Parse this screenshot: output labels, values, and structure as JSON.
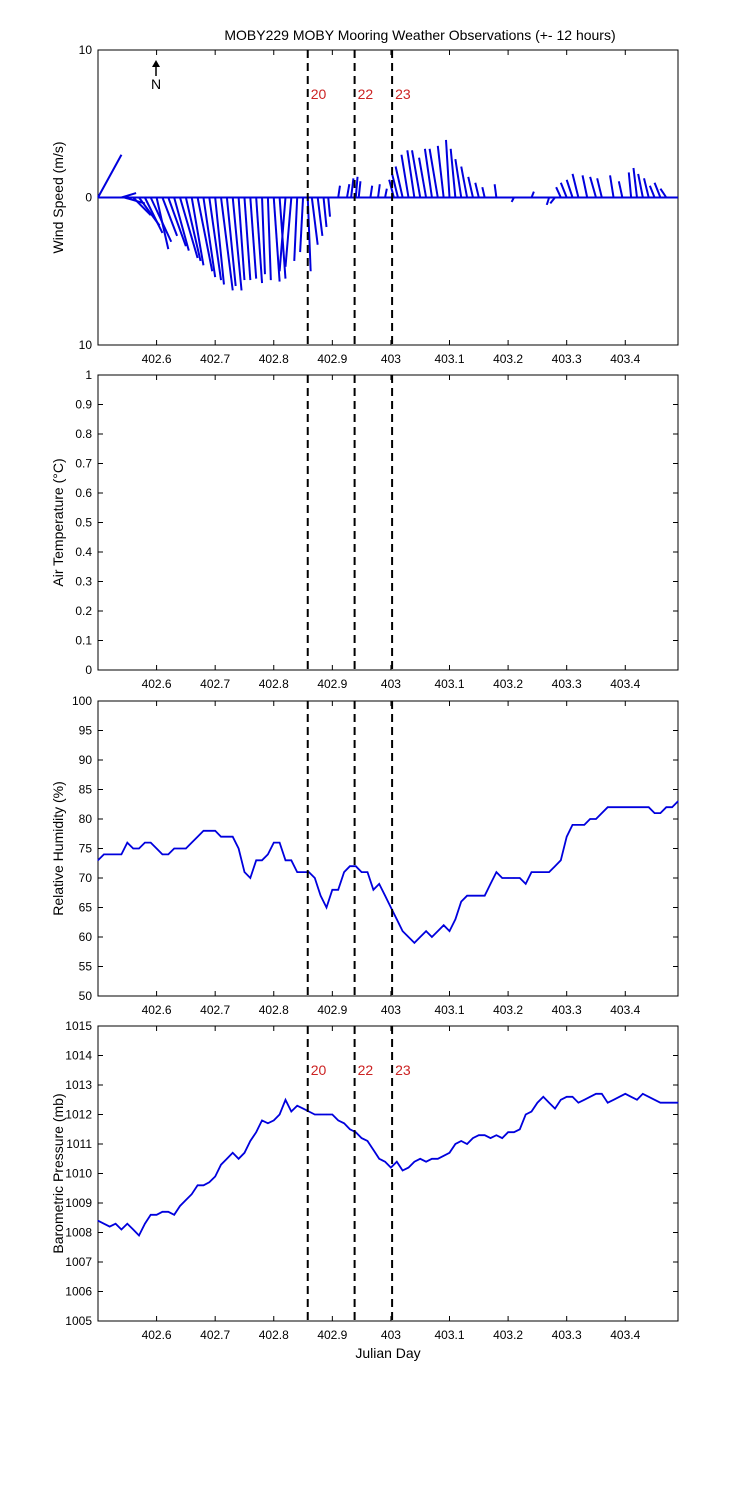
{
  "title": "MOBY229 MOBY Mooring Weather Observations (+- 12 hours)",
  "colors": {
    "line": "#0000dd",
    "event": "#000000",
    "event_label": "#cc2222"
  },
  "north_label": "N",
  "chart_data": [
    {
      "type": "wind-vector",
      "ylabel": "Wind Speed (m/s)",
      "xlim": [
        402.5,
        403.49
      ],
      "ylim": [
        -10,
        10
      ],
      "yticks": [
        10,
        0,
        10
      ],
      "xticks": [
        402.6,
        402.7,
        402.8,
        402.9,
        403,
        403.1,
        403.2,
        403.3,
        403.4
      ],
      "xlabel": "",
      "events": [
        {
          "x": 402.858,
          "label": "20"
        },
        {
          "x": 402.938,
          "label": "22"
        },
        {
          "x": 403.002,
          "label": "23"
        }
      ],
      "vectors": [
        {
          "x": 402.5,
          "u": 0.04,
          "v": 2.9
        },
        {
          "x": 402.54,
          "u": 0.025,
          "v": 0.3
        },
        {
          "x": 402.545,
          "u": 0.035,
          "v": -0.4
        },
        {
          "x": 402.56,
          "u": 0.03,
          "v": -1.2
        },
        {
          "x": 402.57,
          "u": 0.035,
          "v": -1.9
        },
        {
          "x": 402.58,
          "u": 0.03,
          "v": -2.4
        },
        {
          "x": 402.59,
          "u": 0.035,
          "v": -3.0
        },
        {
          "x": 402.6,
          "u": 0.02,
          "v": -3.5
        },
        {
          "x": 402.61,
          "u": 0.025,
          "v": -2.6
        },
        {
          "x": 402.62,
          "u": 0.03,
          "v": -3.3
        },
        {
          "x": 402.63,
          "u": 0.025,
          "v": -3.6
        },
        {
          "x": 402.64,
          "u": 0.03,
          "v": -4.1
        },
        {
          "x": 402.65,
          "u": 0.025,
          "v": -4.3
        },
        {
          "x": 402.66,
          "u": 0.02,
          "v": -4.6
        },
        {
          "x": 402.67,
          "u": 0.025,
          "v": -5.0
        },
        {
          "x": 402.68,
          "u": 0.02,
          "v": -5.4
        },
        {
          "x": 402.69,
          "u": 0.02,
          "v": -5.6
        },
        {
          "x": 402.7,
          "u": 0.015,
          "v": -5.9
        },
        {
          "x": 402.71,
          "u": 0.02,
          "v": -6.3
        },
        {
          "x": 402.72,
          "u": 0.015,
          "v": -6.0
        },
        {
          "x": 402.73,
          "u": 0.015,
          "v": -6.3
        },
        {
          "x": 402.74,
          "u": 0.01,
          "v": -5.6
        },
        {
          "x": 402.75,
          "u": 0.01,
          "v": -5.6
        },
        {
          "x": 402.76,
          "u": 0.01,
          "v": -5.5
        },
        {
          "x": 402.77,
          "u": 0.01,
          "v": -5.8
        },
        {
          "x": 402.78,
          "u": 0.005,
          "v": -5.2
        },
        {
          "x": 402.79,
          "u": 0.005,
          "v": -5.6
        },
        {
          "x": 402.8,
          "u": 0.01,
          "v": -5.7
        },
        {
          "x": 402.81,
          "u": 0.01,
          "v": -5.5
        },
        {
          "x": 402.82,
          "u": -0.01,
          "v": -5.0
        },
        {
          "x": 402.83,
          "u": -0.01,
          "v": -4.7
        },
        {
          "x": 402.84,
          "u": -0.005,
          "v": -4.3
        },
        {
          "x": 402.85,
          "u": -0.005,
          "v": -3.7
        },
        {
          "x": 402.858,
          "u": 0.005,
          "v": -5.0
        },
        {
          "x": 402.865,
          "u": 0.01,
          "v": -3.2
        },
        {
          "x": 402.875,
          "u": 0.008,
          "v": -2.6
        },
        {
          "x": 402.885,
          "u": 0.005,
          "v": -2.0
        },
        {
          "x": 402.893,
          "u": 0.003,
          "v": -1.3
        },
        {
          "x": 402.91,
          "u": 0.003,
          "v": 0.8
        },
        {
          "x": 402.925,
          "u": 0.004,
          "v": 0.9
        },
        {
          "x": 402.932,
          "u": 0.004,
          "v": 1.3
        },
        {
          "x": 402.94,
          "u": 0.003,
          "v": 1.4
        },
        {
          "x": 402.945,
          "u": 0.003,
          "v": 1.1
        },
        {
          "x": 402.965,
          "u": 0.003,
          "v": 0.8
        },
        {
          "x": 402.978,
          "u": 0.003,
          "v": 0.9
        },
        {
          "x": 402.99,
          "u": 0.003,
          "v": 0.6
        },
        {
          "x": 403.005,
          "u": -0.008,
          "v": 1.2
        },
        {
          "x": 403.012,
          "u": -0.01,
          "v": 1.6
        },
        {
          "x": 403.02,
          "u": -0.012,
          "v": 2.1
        },
        {
          "x": 403.03,
          "u": -0.012,
          "v": 2.9
        },
        {
          "x": 403.04,
          "u": -0.012,
          "v": 3.2
        },
        {
          "x": 403.05,
          "u": -0.014,
          "v": 3.2
        },
        {
          "x": 403.06,
          "u": -0.012,
          "v": 2.7
        },
        {
          "x": 403.07,
          "u": -0.012,
          "v": 3.3
        },
        {
          "x": 403.08,
          "u": -0.014,
          "v": 3.3
        },
        {
          "x": 403.09,
          "u": -0.01,
          "v": 3.5
        },
        {
          "x": 403.1,
          "u": -0.006,
          "v": 3.9
        },
        {
          "x": 403.11,
          "u": -0.008,
          "v": 3.3
        },
        {
          "x": 403.12,
          "u": -0.01,
          "v": 2.6
        },
        {
          "x": 403.13,
          "u": -0.01,
          "v": 2.1
        },
        {
          "x": 403.14,
          "u": -0.008,
          "v": 1.4
        },
        {
          "x": 403.15,
          "u": -0.006,
          "v": 1.0
        },
        {
          "x": 403.16,
          "u": -0.004,
          "v": 0.7
        },
        {
          "x": 403.18,
          "u": -0.003,
          "v": 0.9
        },
        {
          "x": 403.21,
          "u": -0.004,
          "v": -0.3
        },
        {
          "x": 403.24,
          "u": 0.004,
          "v": 0.4
        },
        {
          "x": 403.27,
          "u": -0.004,
          "v": -0.5
        },
        {
          "x": 403.28,
          "u": -0.008,
          "v": -0.4
        },
        {
          "x": 403.29,
          "u": -0.008,
          "v": 0.7
        },
        {
          "x": 403.3,
          "u": -0.01,
          "v": 1.0
        },
        {
          "x": 403.31,
          "u": -0.01,
          "v": 1.2
        },
        {
          "x": 403.32,
          "u": -0.01,
          "v": 1.6
        },
        {
          "x": 403.335,
          "u": -0.008,
          "v": 1.5
        },
        {
          "x": 403.35,
          "u": -0.01,
          "v": 1.4
        },
        {
          "x": 403.36,
          "u": -0.008,
          "v": 1.3
        },
        {
          "x": 403.38,
          "u": -0.006,
          "v": 1.5
        },
        {
          "x": 403.395,
          "u": -0.006,
          "v": 1.1
        },
        {
          "x": 403.41,
          "u": -0.004,
          "v": 1.7
        },
        {
          "x": 403.42,
          "u": -0.006,
          "v": 2.0
        },
        {
          "x": 403.43,
          "u": -0.008,
          "v": 1.6
        },
        {
          "x": 403.44,
          "u": -0.008,
          "v": 1.3
        },
        {
          "x": 403.45,
          "u": -0.008,
          "v": 0.8
        },
        {
          "x": 403.46,
          "u": -0.01,
          "v": 1.0
        },
        {
          "x": 403.47,
          "u": -0.01,
          "v": 0.6
        }
      ]
    },
    {
      "type": "line",
      "ylabel": "Air Temperature (°C)",
      "xlim": [
        402.5,
        403.49
      ],
      "ylim": [
        0,
        1
      ],
      "yticks": [
        0,
        0.1,
        0.2,
        0.3,
        0.4,
        0.5,
        0.6,
        0.7,
        0.8,
        0.9,
        1
      ],
      "xticks": [
        402.6,
        402.7,
        402.8,
        402.9,
        403,
        403.1,
        403.2,
        403.3,
        403.4
      ],
      "xlabel": "",
      "events": [
        {
          "x": 402.858,
          "label": ""
        },
        {
          "x": 402.938,
          "label": ""
        },
        {
          "x": 403.002,
          "label": ""
        }
      ],
      "x": [],
      "y": []
    },
    {
      "type": "line",
      "ylabel": "Relative Humidity (%)",
      "xlim": [
        402.5,
        403.49
      ],
      "ylim": [
        50,
        100
      ],
      "yticks": [
        50,
        55,
        60,
        65,
        70,
        75,
        80,
        85,
        90,
        95,
        100
      ],
      "xticks": [
        402.6,
        402.7,
        402.8,
        402.9,
        403,
        403.1,
        403.2,
        403.3,
        403.4
      ],
      "xlabel": "",
      "events": [
        {
          "x": 402.858,
          "label": ""
        },
        {
          "x": 402.938,
          "label": ""
        },
        {
          "x": 403.002,
          "label": ""
        }
      ],
      "x": [
        402.5,
        402.51,
        402.52,
        402.53,
        402.54,
        402.55,
        402.56,
        402.57,
        402.58,
        402.59,
        402.6,
        402.61,
        402.62,
        402.63,
        402.64,
        402.65,
        402.66,
        402.67,
        402.68,
        402.69,
        402.7,
        402.71,
        402.72,
        402.73,
        402.74,
        402.75,
        402.76,
        402.77,
        402.78,
        402.79,
        402.8,
        402.81,
        402.82,
        402.83,
        402.84,
        402.85,
        402.86,
        402.87,
        402.88,
        402.89,
        402.9,
        402.91,
        402.92,
        402.93,
        402.94,
        402.95,
        402.96,
        402.97,
        402.98,
        402.99,
        403.0,
        403.01,
        403.02,
        403.03,
        403.04,
        403.05,
        403.06,
        403.07,
        403.08,
        403.09,
        403.1,
        403.11,
        403.12,
        403.13,
        403.14,
        403.15,
        403.16,
        403.17,
        403.18,
        403.19,
        403.2,
        403.21,
        403.22,
        403.23,
        403.24,
        403.25,
        403.26,
        403.27,
        403.28,
        403.29,
        403.3,
        403.31,
        403.32,
        403.33,
        403.34,
        403.35,
        403.36,
        403.37,
        403.38,
        403.39,
        403.4,
        403.41,
        403.42,
        403.43,
        403.44,
        403.45,
        403.46,
        403.47,
        403.48,
        403.49
      ],
      "y": [
        73,
        74,
        74,
        74,
        74,
        76,
        75,
        75,
        76,
        76,
        75,
        74,
        74,
        75,
        75,
        75,
        76,
        77,
        78,
        78,
        78,
        77,
        77,
        77,
        75,
        71,
        70,
        73,
        73,
        74,
        76,
        76,
        73,
        73,
        71,
        71,
        71,
        70,
        67,
        65,
        68,
        68,
        71,
        72,
        72,
        71,
        71,
        68,
        69,
        67,
        65,
        63,
        61,
        60,
        59,
        60,
        61,
        60,
        61,
        62,
        61,
        63,
        66,
        67,
        67,
        67,
        67,
        69,
        71,
        70,
        70,
        70,
        70,
        69,
        71,
        71,
        71,
        71,
        72,
        73,
        77,
        79,
        79,
        79,
        80,
        80,
        81,
        82,
        82,
        82,
        82,
        82,
        82,
        82,
        82,
        81,
        81,
        82,
        82,
        83
      ]
    },
    {
      "type": "line",
      "ylabel": "Barometric Pressure (mb)",
      "xlim": [
        402.5,
        403.49
      ],
      "ylim": [
        1005,
        1015
      ],
      "yticks": [
        1005,
        1006,
        1007,
        1008,
        1009,
        1010,
        1011,
        1012,
        1013,
        1014,
        1015
      ],
      "xticks": [
        402.6,
        402.7,
        402.8,
        402.9,
        403,
        403.1,
        403.2,
        403.3,
        403.4
      ],
      "xlabel": "Julian Day",
      "events": [
        {
          "x": 402.858,
          "label": "20"
        },
        {
          "x": 402.938,
          "label": "22"
        },
        {
          "x": 403.002,
          "label": "23"
        }
      ],
      "x": [
        402.5,
        402.51,
        402.52,
        402.53,
        402.54,
        402.55,
        402.56,
        402.57,
        402.58,
        402.59,
        402.6,
        402.61,
        402.62,
        402.63,
        402.64,
        402.65,
        402.66,
        402.67,
        402.68,
        402.69,
        402.7,
        402.71,
        402.72,
        402.73,
        402.74,
        402.75,
        402.76,
        402.77,
        402.78,
        402.79,
        402.8,
        402.81,
        402.82,
        402.83,
        402.84,
        402.85,
        402.86,
        402.87,
        402.88,
        402.89,
        402.9,
        402.91,
        402.92,
        402.93,
        402.94,
        402.95,
        402.96,
        402.97,
        402.98,
        402.99,
        403.0,
        403.01,
        403.02,
        403.03,
        403.04,
        403.05,
        403.06,
        403.07,
        403.08,
        403.09,
        403.1,
        403.11,
        403.12,
        403.13,
        403.14,
        403.15,
        403.16,
        403.17,
        403.18,
        403.19,
        403.2,
        403.21,
        403.22,
        403.23,
        403.24,
        403.25,
        403.26,
        403.27,
        403.28,
        403.29,
        403.3,
        403.31,
        403.32,
        403.33,
        403.34,
        403.35,
        403.36,
        403.37,
        403.38,
        403.39,
        403.4,
        403.41,
        403.42,
        403.43,
        403.44,
        403.45,
        403.46,
        403.47,
        403.48,
        403.49
      ],
      "y": [
        1008.4,
        1008.3,
        1008.2,
        1008.3,
        1008.1,
        1008.3,
        1008.1,
        1007.9,
        1008.3,
        1008.6,
        1008.6,
        1008.7,
        1008.7,
        1008.6,
        1008.9,
        1009.1,
        1009.3,
        1009.6,
        1009.6,
        1009.7,
        1009.9,
        1010.3,
        1010.5,
        1010.7,
        1010.5,
        1010.7,
        1011.1,
        1011.4,
        1011.8,
        1011.7,
        1011.8,
        1012.0,
        1012.5,
        1012.1,
        1012.3,
        1012.2,
        1012.1,
        1012.0,
        1012.0,
        1012.0,
        1012.0,
        1011.8,
        1011.7,
        1011.5,
        1011.4,
        1011.2,
        1011.1,
        1010.8,
        1010.5,
        1010.4,
        1010.2,
        1010.4,
        1010.1,
        1010.2,
        1010.4,
        1010.5,
        1010.4,
        1010.5,
        1010.5,
        1010.6,
        1010.7,
        1011.0,
        1011.1,
        1011.0,
        1011.2,
        1011.3,
        1011.3,
        1011.2,
        1011.3,
        1011.2,
        1011.4,
        1011.4,
        1011.5,
        1012.0,
        1012.1,
        1012.4,
        1012.6,
        1012.4,
        1012.2,
        1012.5,
        1012.6,
        1012.6,
        1012.4,
        1012.5,
        1012.6,
        1012.7,
        1012.7,
        1012.4,
        1012.5,
        1012.6,
        1012.7,
        1012.6,
        1012.5,
        1012.7,
        1012.6,
        1012.5,
        1012.4,
        1012.4,
        1012.4,
        1012.4
      ]
    }
  ]
}
